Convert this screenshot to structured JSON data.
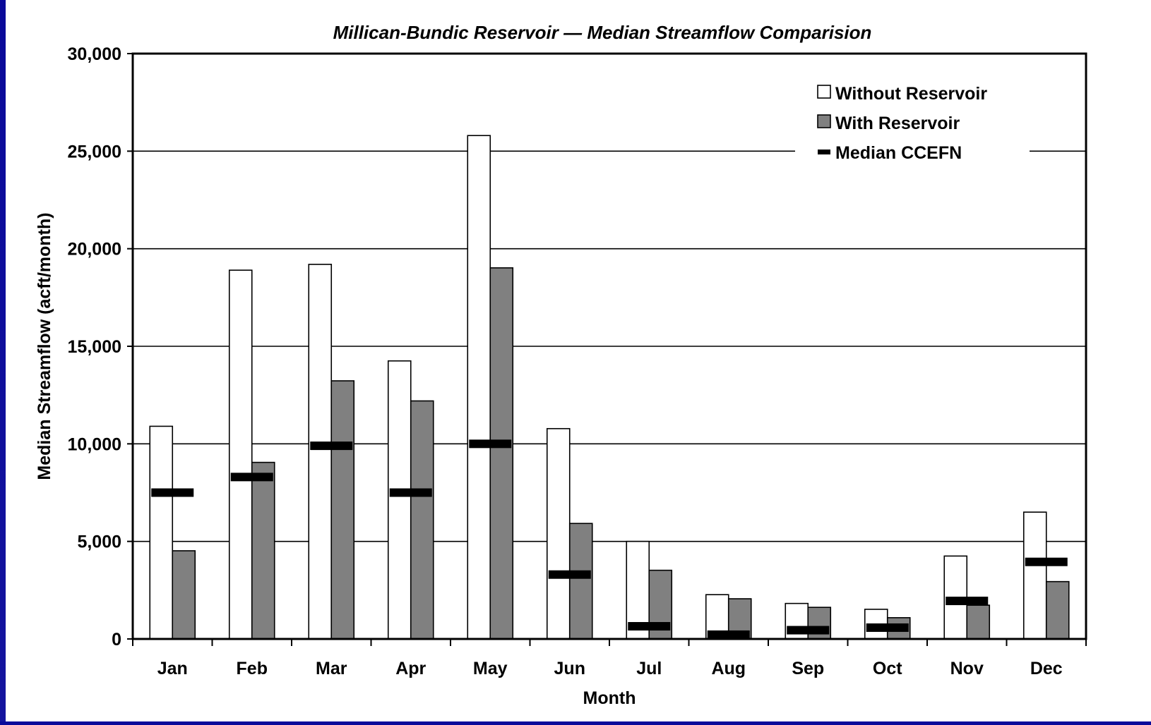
{
  "chart_data": {
    "type": "bar",
    "title": "Millican-Bundic Reservoir — Median Streamflow Comparision",
    "xlabel": "Month",
    "ylabel": "Median Streamflow (acft/month)",
    "ylim": [
      0,
      30000
    ],
    "yticks": [
      0,
      5000,
      10000,
      15000,
      20000,
      25000,
      30000
    ],
    "ytick_labels": [
      "0",
      "5,000",
      "10,000",
      "15,000",
      "20,000",
      "25,000",
      "30,000"
    ],
    "grid": true,
    "legend_position": "top-right",
    "categories": [
      "Jan",
      "Feb",
      "Mar",
      "Apr",
      "May",
      "Jun",
      "Jul",
      "Aug",
      "Sep",
      "Oct",
      "Nov",
      "Dec"
    ],
    "series": [
      {
        "name": "Without Reservoir",
        "kind": "bar",
        "color": "#ffffff",
        "values": [
          10900,
          18900,
          19200,
          14250,
          25800,
          10780,
          5000,
          2270,
          1820,
          1520,
          4250,
          6500
        ]
      },
      {
        "name": "With Reservoir",
        "kind": "bar",
        "color": "#808080",
        "values": [
          4520,
          9050,
          13230,
          12200,
          19020,
          5920,
          3520,
          2060,
          1620,
          1090,
          1730,
          2940
        ]
      },
      {
        "name": "Median CCEFN",
        "kind": "marker",
        "color": "#000000",
        "values": [
          7500,
          8300,
          9900,
          7500,
          10000,
          3300,
          650,
          220,
          450,
          580,
          1950,
          3950
        ]
      }
    ]
  },
  "colors": {
    "background_frame": "#0a0a9a",
    "plot_background": "#ffffff",
    "with_bar": "#808080"
  }
}
